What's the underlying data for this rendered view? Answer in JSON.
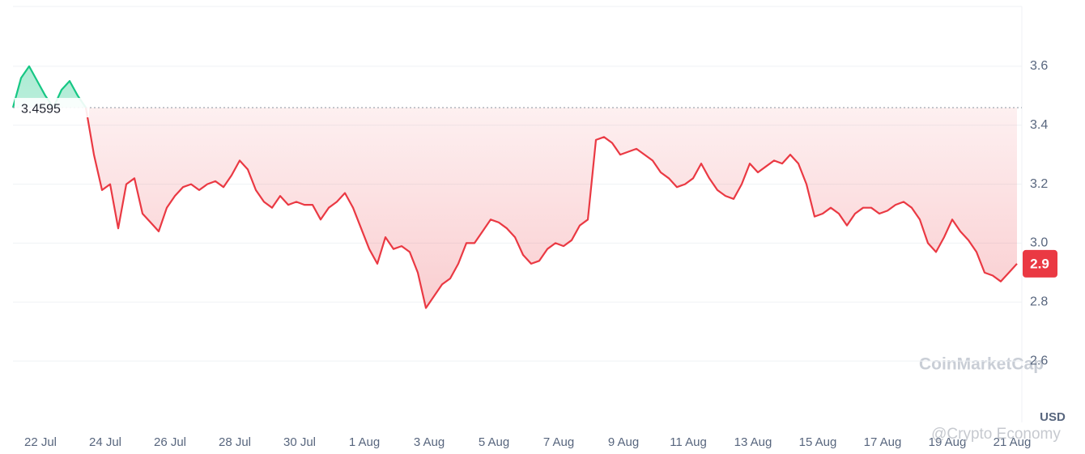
{
  "chart_data": {
    "type": "line",
    "categories": [
      null,
      null,
      null,
      "22 Jul",
      null,
      null,
      null,
      null,
      null,
      null,
      null,
      "24 Jul",
      null,
      null,
      null,
      null,
      null,
      null,
      null,
      "26 Jul",
      null,
      null,
      null,
      null,
      null,
      null,
      null,
      "28 Jul",
      null,
      null,
      null,
      null,
      null,
      null,
      null,
      "30 Jul",
      null,
      null,
      null,
      null,
      null,
      null,
      null,
      "1 Aug",
      null,
      null,
      null,
      null,
      null,
      null,
      null,
      "3 Aug",
      null,
      null,
      null,
      null,
      null,
      null,
      null,
      "5 Aug",
      null,
      null,
      null,
      null,
      null,
      null,
      null,
      "7 Aug",
      null,
      null,
      null,
      null,
      null,
      null,
      null,
      "9 Aug",
      null,
      null,
      null,
      null,
      null,
      null,
      null,
      "11 Aug",
      null,
      null,
      null,
      null,
      null,
      null,
      null,
      "13 Aug",
      null,
      null,
      null,
      null,
      null,
      null,
      null,
      "15 Aug",
      null,
      null,
      null,
      null,
      null,
      null,
      null,
      "17 Aug",
      null,
      null,
      null,
      null,
      null,
      null,
      null,
      "19 Aug",
      null,
      null,
      null,
      null,
      null,
      null,
      null,
      "21 Aug",
      null
    ],
    "values": [
      3.46,
      3.56,
      3.6,
      3.55,
      3.5,
      3.46,
      3.52,
      3.55,
      3.5,
      3.46,
      3.3,
      3.18,
      3.2,
      3.05,
      3.2,
      3.22,
      3.1,
      3.07,
      3.04,
      3.12,
      3.16,
      3.19,
      3.2,
      3.18,
      3.2,
      3.21,
      3.19,
      3.23,
      3.28,
      3.25,
      3.18,
      3.14,
      3.12,
      3.16,
      3.13,
      3.14,
      3.13,
      3.13,
      3.08,
      3.12,
      3.14,
      3.17,
      3.12,
      3.05,
      2.98,
      2.93,
      3.02,
      2.98,
      2.99,
      2.97,
      2.9,
      2.78,
      2.82,
      2.86,
      2.88,
      2.93,
      3.0,
      3.0,
      3.04,
      3.08,
      3.07,
      3.05,
      3.02,
      2.96,
      2.93,
      2.94,
      2.98,
      3.0,
      2.99,
      3.01,
      3.06,
      3.08,
      3.35,
      3.36,
      3.34,
      3.3,
      3.31,
      3.32,
      3.3,
      3.28,
      3.24,
      3.22,
      3.19,
      3.2,
      3.22,
      3.27,
      3.22,
      3.18,
      3.16,
      3.15,
      3.2,
      3.27,
      3.24,
      3.26,
      3.28,
      3.27,
      3.3,
      3.27,
      3.2,
      3.09,
      3.1,
      3.12,
      3.1,
      3.06,
      3.1,
      3.12,
      3.12,
      3.1,
      3.11,
      3.13,
      3.14,
      3.12,
      3.08,
      3.0,
      2.97,
      3.02,
      3.08,
      3.04,
      3.01,
      2.97,
      2.9,
      2.89,
      2.87,
      2.9,
      2.93
    ],
    "ylim": [
      2.4,
      3.8
    ],
    "yticks": [
      2.6,
      2.8,
      {
        "value": 3,
        "label": "3.0"
      },
      3.2,
      3.4,
      3.6
    ],
    "y_axis_label": "USD",
    "baseline": 3.4595,
    "up_color": "#16c784",
    "down_color": "#ea3943",
    "price_label": "2.9",
    "grid": true,
    "watermarks": [
      "CoinMarketCap",
      "@Crypto Economy"
    ]
  }
}
